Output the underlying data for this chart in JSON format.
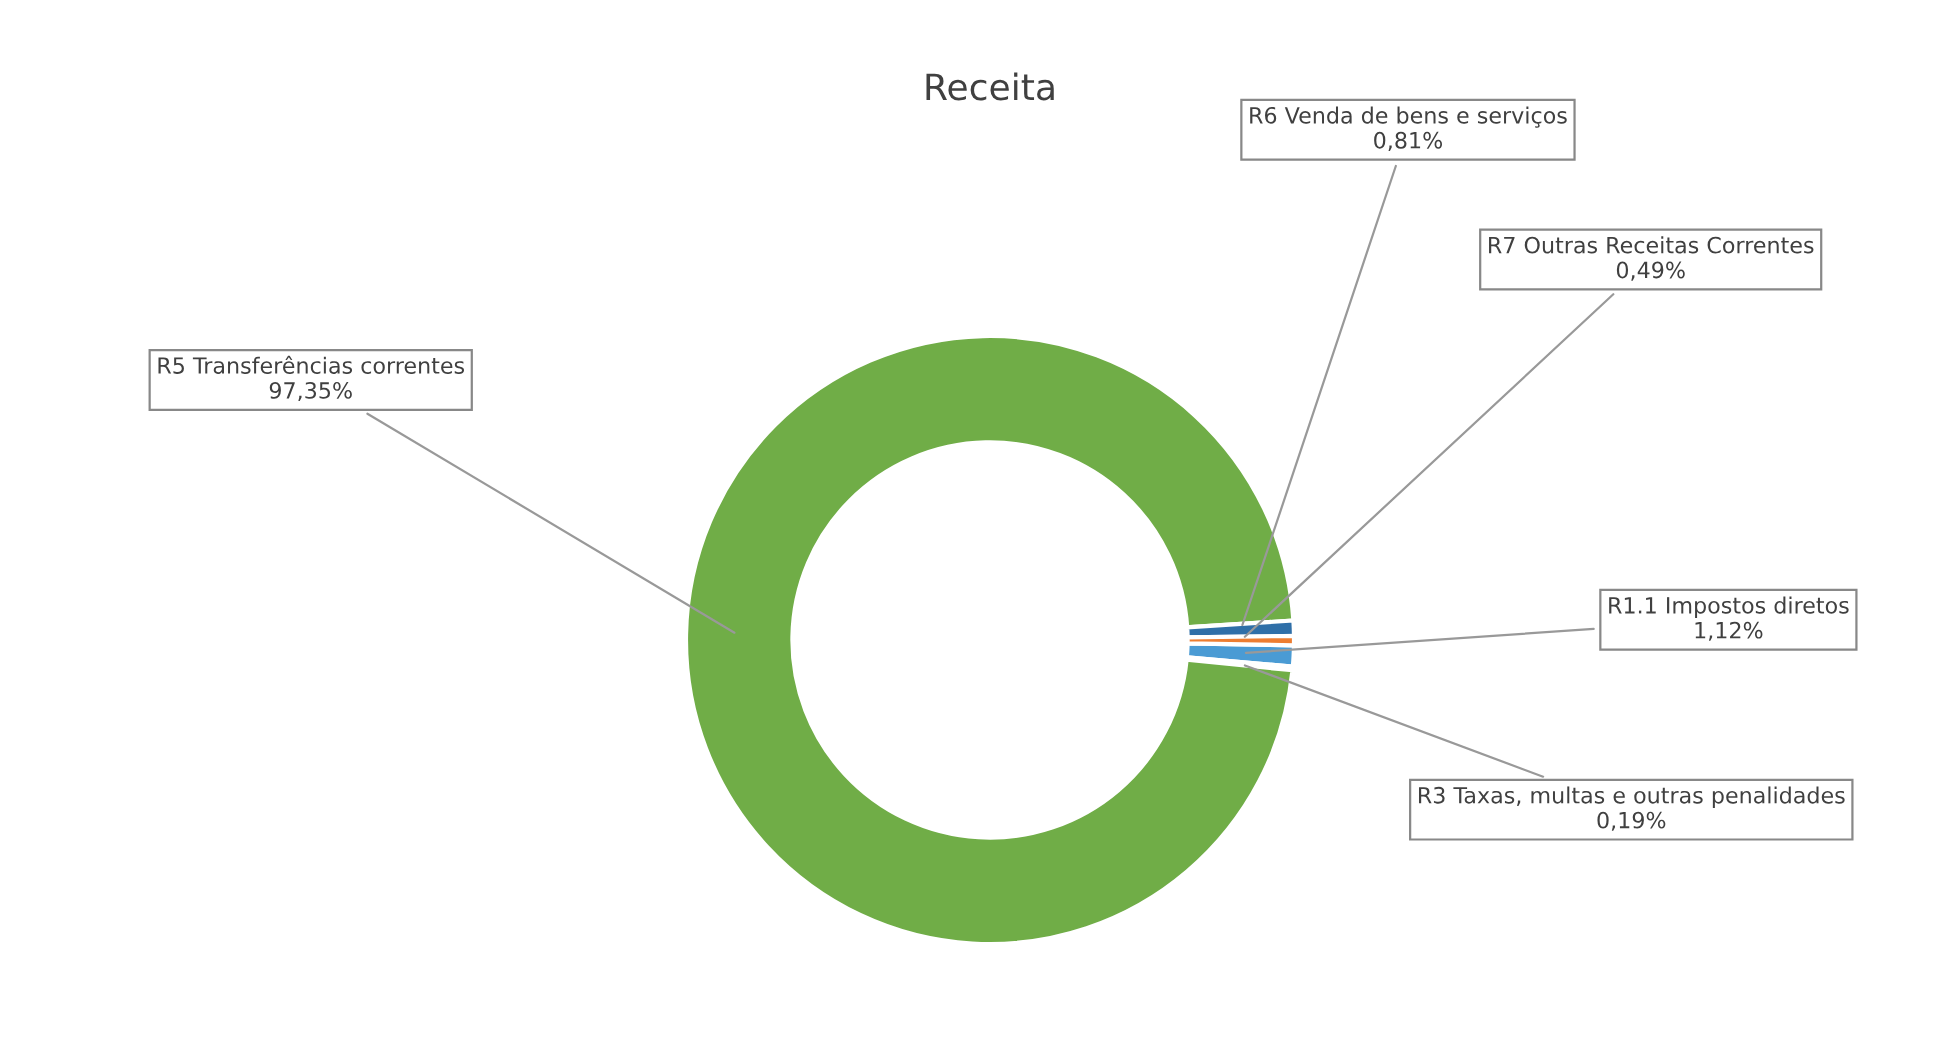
{
  "chart_data": {
    "type": "donut",
    "title": "Receita",
    "categories": [
      "R1.1 Impostos diretos",
      "R3 Taxas, multas e outras penalidades",
      "R5 Transferências correntes",
      "R6 Venda de bens e serviços",
      "R7 Outras Receitas Correntes"
    ],
    "values": [
      1.12,
      0.19,
      97.35,
      0.81,
      0.49
    ],
    "value_labels": [
      "1,12%",
      "0,19%",
      "97,35%",
      "0,81%",
      "0,49%"
    ],
    "colors": [
      "#4a9bd4",
      "#a5a5a5",
      "#70ad47",
      "#2f6fa8",
      "#ed7d31"
    ],
    "legend": false
  }
}
